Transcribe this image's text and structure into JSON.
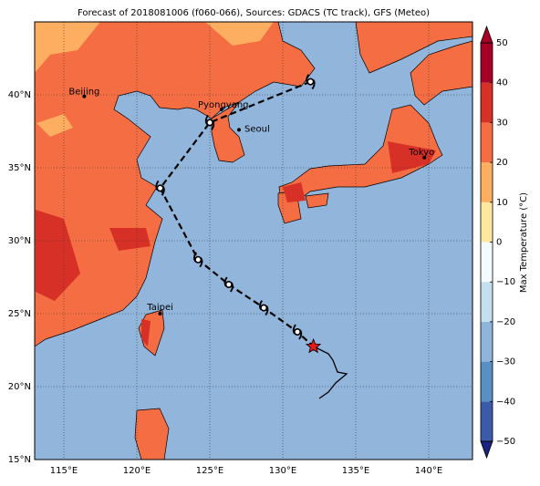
{
  "title": "Forecast of 2018081006 (f060-066), Sources: GDACS (TC track), GFS (Meteo)",
  "map": {
    "xlim": [
      113,
      143
    ],
    "ylim": [
      15,
      45
    ],
    "grid": true,
    "xticks": [
      {
        "value": 115,
        "label": "115°E"
      },
      {
        "value": 120,
        "label": "120°E"
      },
      {
        "value": 125,
        "label": "125°E"
      },
      {
        "value": 130,
        "label": "130°E"
      },
      {
        "value": 135,
        "label": "135°E"
      },
      {
        "value": 140,
        "label": "140°E"
      }
    ],
    "yticks": [
      {
        "value": 15,
        "label": "15°N"
      },
      {
        "value": 20,
        "label": "20°N"
      },
      {
        "value": 25,
        "label": "25°N"
      },
      {
        "value": 30,
        "label": "30°N"
      },
      {
        "value": 35,
        "label": "35°N"
      },
      {
        "value": 40,
        "label": "40°N"
      }
    ],
    "cities": [
      {
        "name": "Beijing",
        "lon": 116.4,
        "lat": 39.9
      },
      {
        "name": "Pyongyang",
        "lon": 125.8,
        "lat": 39.0
      },
      {
        "name": "Seoul",
        "lon": 127.0,
        "lat": 37.6
      },
      {
        "name": "Tokyo",
        "lon": 139.7,
        "lat": 35.7
      },
      {
        "name": "Taipei",
        "lon": 121.6,
        "lat": 25.0
      }
    ],
    "track": {
      "lon": [
        131.9,
        125.0,
        121.6,
        124.2,
        126.3,
        128.7,
        131.0,
        132.1
      ],
      "lat": [
        40.9,
        38.1,
        33.6,
        28.7,
        27.0,
        25.4,
        23.75,
        22.75
      ]
    }
  },
  "colorbar": {
    "label": "Max Temperature (°C)",
    "lim": [
      -50,
      50
    ],
    "ticks": [
      {
        "value": -50,
        "label": "−50"
      },
      {
        "value": -40,
        "label": "−40"
      },
      {
        "value": -30,
        "label": "−30"
      },
      {
        "value": -20,
        "label": "−20"
      },
      {
        "value": -10,
        "label": "−10"
      },
      0,
      10,
      20,
      30,
      40,
      50
    ],
    "colors": [
      "#1a237e",
      "#3b5ba9",
      "#5a8fc4",
      "#8fb6da",
      "#c4e0ef",
      "#f4fbff",
      "#fee8a0",
      "#fdae61",
      "#f46d43",
      "#d73027",
      "#a50026"
    ]
  }
}
